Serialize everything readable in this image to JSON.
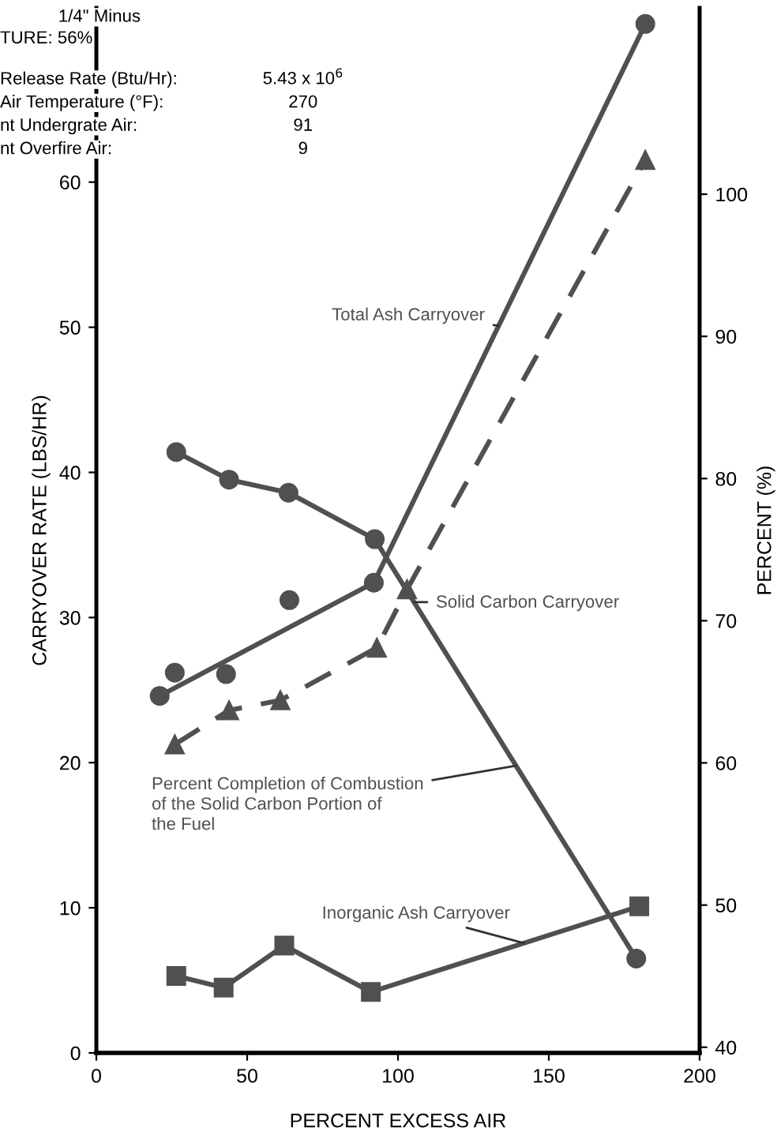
{
  "chart_data": {
    "type": "line",
    "xlabel": "PERCENT EXCESS AIR",
    "ylabel": "CARRYOVER RATE (LBS/HR)",
    "y2label": "PERCENT (%)",
    "xlim": [
      0,
      200
    ],
    "xticks": [
      0,
      50,
      100,
      150,
      200
    ],
    "ylim": [
      0,
      72
    ],
    "yticks": [
      0,
      10,
      20,
      30,
      40,
      50,
      60
    ],
    "y2lim": [
      39.6,
      113.1
    ],
    "y2ticks": [
      40,
      50,
      60,
      70,
      80,
      90,
      100
    ],
    "grid": false,
    "legend": false,
    "series": [
      {
        "name": "Total Ash Carryover",
        "color": "#505050",
        "marker": "circle",
        "line_style": "solid",
        "x": [
          21,
          92,
          182
        ],
        "values": [
          24.6,
          32.4,
          70.9
        ]
      },
      {
        "type": "scatter",
        "color": "#505050",
        "marker": "circle",
        "x": [
          26,
          43,
          64
        ],
        "values": [
          26.2,
          26.1,
          31.2
        ]
      },
      {
        "name": "Solid Carbon Carryover",
        "color": "#505050",
        "marker": "circle",
        "line_style": "solid",
        "x": [
          26.5,
          44,
          63.7,
          92.3,
          179
        ],
        "values": [
          41.4,
          39.5,
          38.6,
          35.4,
          6.5
        ]
      },
      {
        "name": "Inorganic Ash Carryover",
        "color": "#505050",
        "marker": "square",
        "line_style": "solid",
        "x": [
          26.5,
          42.2,
          62.3,
          91,
          180
        ],
        "values": [
          5.3,
          4.5,
          7.4,
          4.2,
          10.1
        ]
      },
      {
        "name": "Percent Completion of Combustion\nof the Solid Carbon Portion of\nthe Fuel",
        "axis": "y2",
        "color": "#505050",
        "marker": "triangle",
        "line_style": "dashed",
        "x": [
          26,
          44,
          61,
          93,
          103,
          182
        ],
        "values": [
          61.3,
          63.7,
          64.4,
          68.1,
          72.2,
          102.4
        ]
      }
    ],
    "annotations": [
      "1/4\" Minus",
      "TURE: 56%",
      "Release Rate (Btu/Hr):",
      "5.43 x 10$^{6}$",
      "Air Temperature (°F):",
      "270",
      "nt Undergrate Air:",
      "91",
      "nt Overfire Air:",
      "9"
    ]
  }
}
